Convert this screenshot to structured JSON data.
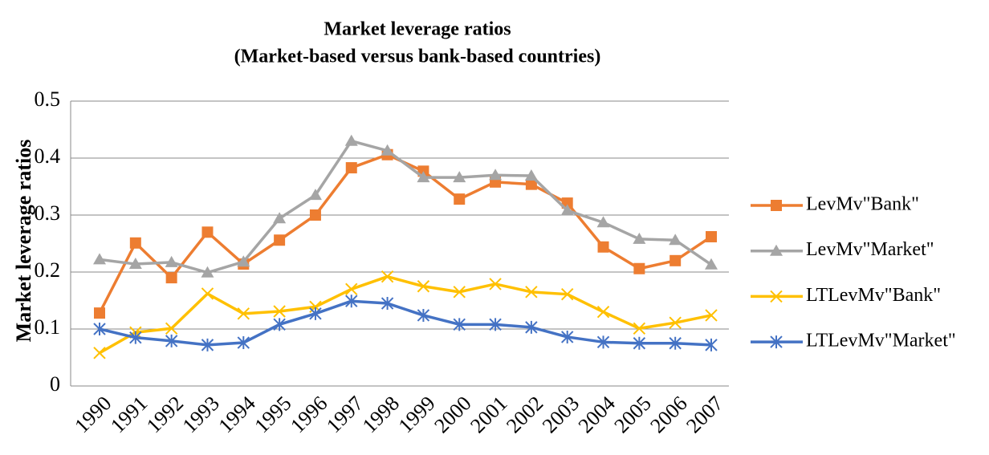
{
  "chart_data": {
    "type": "line",
    "title": "Market leverage ratios",
    "subtitle": "(Market-based versus bank-based countries)",
    "y_label": "Market leverage ratios",
    "categories": [
      "1990",
      "1991",
      "1992",
      "1993",
      "1994",
      "1995",
      "1996",
      "1997",
      "1998",
      "1999",
      "2000",
      "2001",
      "2002",
      "2003",
      "2004",
      "2005",
      "2006",
      "2007"
    ],
    "series": [
      {
        "name": "LevMv\"Bank\"",
        "color": "#ed7d31",
        "marker": "square",
        "values": [
          0.128,
          0.251,
          0.19,
          0.27,
          0.214,
          0.256,
          0.3,
          0.383,
          0.406,
          0.377,
          0.328,
          0.358,
          0.354,
          0.321,
          0.244,
          0.206,
          0.22,
          0.262
        ]
      },
      {
        "name": "LevMv\"Market\"",
        "color": "#a5a5a5",
        "marker": "triangle",
        "values": [
          0.222,
          0.214,
          0.217,
          0.199,
          0.218,
          0.294,
          0.335,
          0.43,
          0.413,
          0.366,
          0.366,
          0.37,
          0.369,
          0.308,
          0.287,
          0.258,
          0.256,
          0.213
        ]
      },
      {
        "name": "LTLevMv\"Bank\"",
        "color": "#ffc000",
        "marker": "x",
        "values": [
          0.058,
          0.094,
          0.101,
          0.162,
          0.127,
          0.131,
          0.139,
          0.17,
          0.192,
          0.175,
          0.165,
          0.179,
          0.165,
          0.161,
          0.13,
          0.101,
          0.111,
          0.124
        ]
      },
      {
        "name": "LTLevMv\"Market\"",
        "color": "#4472c4",
        "marker": "star",
        "values": [
          0.1,
          0.085,
          0.079,
          0.072,
          0.076,
          0.108,
          0.127,
          0.149,
          0.145,
          0.124,
          0.108,
          0.108,
          0.103,
          0.086,
          0.077,
          0.075,
          0.075,
          0.072
        ]
      }
    ],
    "ylim": [
      0,
      0.5
    ],
    "yticks": [
      0,
      0.1,
      0.2,
      0.3,
      0.4,
      0.5
    ],
    "grid": true,
    "legend": "right"
  }
}
